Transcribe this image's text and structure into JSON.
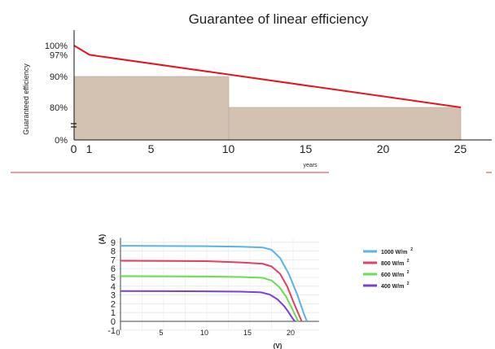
{
  "colors": {
    "bars": "#d3c2b2",
    "bar_stroke": "#b9a996",
    "guarantee_line": "#e8141b",
    "axis": "#111111",
    "separator": "#e23a3a",
    "c1000": "#58b4e6",
    "c800": "#e2405e",
    "c600": "#66e04c",
    "c400": "#7a3fd8"
  },
  "chart_data": [
    {
      "type": "bar",
      "title": "Guarantee of linear efficiency",
      "xlabel": "years",
      "ylabel": "Guaranteed efficiency",
      "x_ticks": [
        "0",
        "1",
        "5",
        "10",
        "15",
        "20",
        "25"
      ],
      "y_ticks": [
        "0%",
        "80%",
        "90%",
        "97%",
        "100%"
      ],
      "xlim": [
        0,
        27
      ],
      "axis_break": true,
      "bars": [
        {
          "x_start": 0,
          "x_end": 10,
          "value": 90
        },
        {
          "x_start": 10,
          "x_end": 25,
          "value": 80
        }
      ],
      "line": {
        "x": [
          0,
          1,
          25
        ],
        "y": [
          100,
          97,
          80
        ]
      }
    },
    {
      "type": "line",
      "xlabel": "(V)",
      "ylabel": "(A)",
      "xlim": [
        -0.5,
        23
      ],
      "ylim": [
        -1,
        9.5
      ],
      "x_ticks": [
        "0",
        "5",
        "10",
        "15",
        "20"
      ],
      "y_ticks": [
        "-1",
        "0",
        "1",
        "2",
        "3",
        "4",
        "5",
        "6",
        "7",
        "8",
        "9"
      ],
      "legend_position": "right",
      "legend_suffix": "2",
      "series": [
        {
          "name": "1000 W/m",
          "color_key": "c1000",
          "x": [
            0,
            5,
            10,
            14,
            16.5,
            17.5,
            18.5,
            19.5,
            20.5,
            21.2,
            21.6
          ],
          "y": [
            8.6,
            8.58,
            8.55,
            8.5,
            8.4,
            8.15,
            7.2,
            5.4,
            3.0,
            1.0,
            0
          ]
        },
        {
          "name": "800 W/m",
          "color_key": "c800",
          "x": [
            0,
            5,
            10,
            14,
            16.5,
            17.5,
            18.5,
            19.3,
            20.0,
            20.6,
            21.0
          ],
          "y": [
            6.9,
            6.88,
            6.85,
            6.7,
            6.55,
            6.25,
            5.4,
            4.0,
            2.3,
            0.9,
            0
          ]
        },
        {
          "name": "600 W/m",
          "color_key": "c600",
          "x": [
            0,
            5,
            10,
            14,
            16.5,
            17.5,
            18.4,
            19.2,
            19.8,
            20.3,
            20.6
          ],
          "y": [
            5.15,
            5.13,
            5.1,
            5.05,
            4.95,
            4.65,
            3.9,
            2.8,
            1.6,
            0.6,
            0
          ]
        },
        {
          "name": "400 W/m",
          "color_key": "c400",
          "x": [
            0,
            5,
            10,
            14,
            16.3,
            17.3,
            18.2,
            19.0,
            19.5,
            19.9,
            20.2
          ],
          "y": [
            3.45,
            3.44,
            3.42,
            3.38,
            3.3,
            3.05,
            2.5,
            1.7,
            1.0,
            0.4,
            0
          ]
        }
      ]
    }
  ]
}
